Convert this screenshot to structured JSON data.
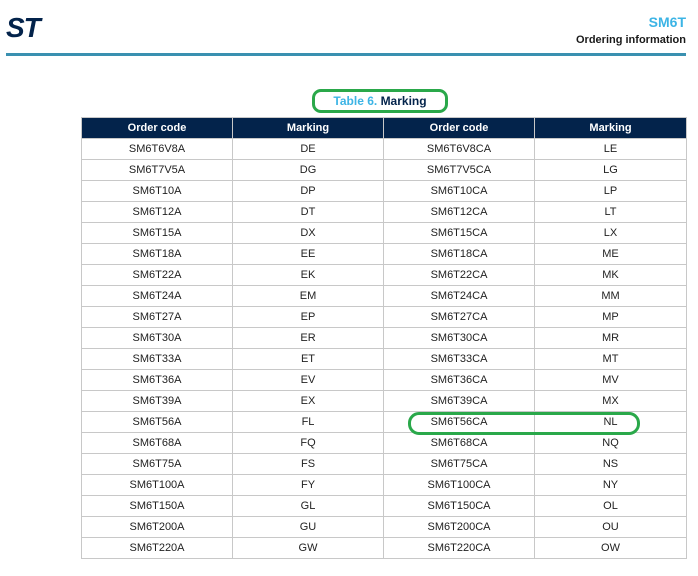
{
  "header": {
    "logo_text": "ST",
    "title": "SM6T",
    "subtitle": "Ordering information"
  },
  "caption": {
    "label": "Table 6.",
    "title": "Marking"
  },
  "table": {
    "columns": [
      "Order code",
      "Marking",
      "Order code",
      "Marking"
    ],
    "rows": [
      [
        "SM6T6V8A",
        "DE",
        "SM6T6V8CA",
        "LE"
      ],
      [
        "SM6T7V5A",
        "DG",
        "SM6T7V5CA",
        "LG"
      ],
      [
        "SM6T10A",
        "DP",
        "SM6T10CA",
        "LP"
      ],
      [
        "SM6T12A",
        "DT",
        "SM6T12CA",
        "LT"
      ],
      [
        "SM6T15A",
        "DX",
        "SM6T15CA",
        "LX"
      ],
      [
        "SM6T18A",
        "EE",
        "SM6T18CA",
        "ME"
      ],
      [
        "SM6T22A",
        "EK",
        "SM6T22CA",
        "MK"
      ],
      [
        "SM6T24A",
        "EM",
        "SM6T24CA",
        "MM"
      ],
      [
        "SM6T27A",
        "EP",
        "SM6T27CA",
        "MP"
      ],
      [
        "SM6T30A",
        "ER",
        "SM6T30CA",
        "MR"
      ],
      [
        "SM6T33A",
        "ET",
        "SM6T33CA",
        "MT"
      ],
      [
        "SM6T36A",
        "EV",
        "SM6T36CA",
        "MV"
      ],
      [
        "SM6T39A",
        "EX",
        "SM6T39CA",
        "MX"
      ],
      [
        "SM6T56A",
        "FL",
        "SM6T56CA",
        "NL"
      ],
      [
        "SM6T68A",
        "FQ",
        "SM6T68CA",
        "NQ"
      ],
      [
        "SM6T75A",
        "FS",
        "SM6T75CA",
        "NS"
      ],
      [
        "SM6T100A",
        "FY",
        "SM6T100CA",
        "NY"
      ],
      [
        "SM6T150A",
        "GL",
        "SM6T150CA",
        "OL"
      ],
      [
        "SM6T200A",
        "GU",
        "SM6T200CA",
        "OU"
      ],
      [
        "SM6T220A",
        "GW",
        "SM6T220CA",
        "OW"
      ]
    ]
  },
  "annotations": {
    "highlighted_row": "SM6T56CA",
    "highlight_color": "#2aa84a"
  },
  "colors": {
    "accent": "#3cb4e5",
    "header_fill": "#03234b",
    "rule": "#3a90b0"
  }
}
